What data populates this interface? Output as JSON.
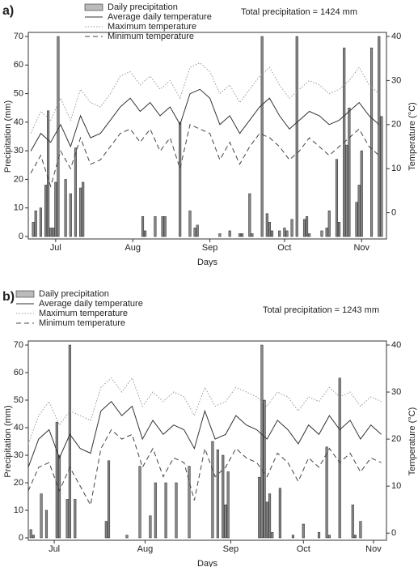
{
  "chart_data": [
    {
      "type": "combo",
      "panel_label": "a)",
      "annotation": "Total precipitation = 1424 mm",
      "xlabel": "Days",
      "ylabel": "Precipitation (mm)",
      "y2label": "Temperature (°C)",
      "xlim": [
        4,
        148
      ],
      "ylim": [
        0,
        70
      ],
      "y2lim": [
        -5.4,
        40
      ],
      "xticks": [
        {
          "value": 15,
          "label": "Jul"
        },
        {
          "value": 46,
          "label": "Aug"
        },
        {
          "value": 77,
          "label": "Sep"
        },
        {
          "value": 107,
          "label": "Oct"
        },
        {
          "value": 138,
          "label": "Nov"
        }
      ],
      "yticks": [
        0,
        10,
        20,
        30,
        40,
        50,
        60,
        70
      ],
      "y2ticks": [
        0,
        10,
        20,
        30,
        40
      ],
      "series": [
        {
          "name": "Daily precipitation",
          "kind": "bar",
          "color": "#888888",
          "x": [
            6,
            7,
            9,
            11,
            12,
            13,
            14,
            15,
            16,
            19,
            21,
            23,
            25,
            26,
            50,
            51,
            55,
            58,
            59,
            65,
            69,
            71,
            72,
            81,
            85,
            89,
            90,
            93,
            94,
            98,
            100,
            101,
            102,
            105,
            107,
            108,
            110,
            112,
            115,
            116,
            117,
            122,
            124,
            125,
            128,
            129,
            131,
            132,
            133,
            136,
            137,
            138,
            142,
            145,
            146
          ],
          "values": [
            5,
            9,
            10,
            18,
            44,
            3,
            3,
            19,
            70,
            20,
            15,
            31,
            17,
            19,
            7,
            2,
            7,
            7,
            7,
            40,
            9,
            3,
            4,
            1,
            2,
            1,
            1,
            15,
            1,
            70,
            8,
            5,
            2,
            2,
            3,
            2,
            6,
            70,
            6,
            7,
            1,
            2,
            3,
            9,
            27,
            5,
            66,
            32,
            45,
            12,
            18,
            30,
            66,
            70,
            42
          ]
        },
        {
          "name": "Average daily temperature",
          "kind": "line",
          "dash": "solid",
          "color": "#333333",
          "axis": "y2",
          "x": [
            5,
            9,
            13,
            17,
            21,
            25,
            29,
            33,
            37,
            41,
            45,
            49,
            53,
            57,
            61,
            65,
            69,
            73,
            77,
            81,
            85,
            89,
            93,
            97,
            101,
            105,
            109,
            113,
            117,
            121,
            125,
            129,
            133,
            137,
            141,
            145
          ],
          "values": [
            14,
            18,
            16,
            20,
            15,
            22,
            17,
            18,
            21,
            24,
            26,
            23,
            25,
            22,
            24,
            20,
            27,
            28,
            26,
            20,
            22,
            18,
            21,
            24,
            26,
            22,
            19,
            21,
            23,
            22,
            20,
            21,
            23,
            25,
            22,
            20
          ]
        },
        {
          "name": "Maximum temperature",
          "kind": "line",
          "dash": "dotted",
          "color": "#999999",
          "axis": "y2",
          "x": [
            5,
            9,
            13,
            17,
            21,
            25,
            29,
            33,
            37,
            41,
            45,
            49,
            53,
            57,
            61,
            65,
            69,
            73,
            77,
            81,
            85,
            89,
            93,
            97,
            101,
            105,
            109,
            113,
            117,
            121,
            125,
            129,
            133,
            137,
            141,
            145
          ],
          "values": [
            18,
            23,
            21,
            26,
            21,
            28,
            25,
            24,
            27,
            31,
            32,
            29,
            31,
            28,
            30,
            26,
            33,
            34,
            32,
            27,
            29,
            25,
            28,
            31,
            33,
            29,
            26,
            28,
            30,
            29,
            27,
            28,
            30,
            33,
            29,
            27
          ]
        },
        {
          "name": "Minimum temperature",
          "kind": "line",
          "dash": "dashed",
          "color": "#444444",
          "axis": "y2",
          "x": [
            5,
            9,
            13,
            17,
            21,
            25,
            29,
            33,
            37,
            41,
            45,
            49,
            53,
            57,
            61,
            65,
            69,
            73,
            77,
            81,
            85,
            89,
            93,
            97,
            101,
            105,
            109,
            113,
            117,
            121,
            125,
            129,
            133,
            137,
            141,
            145
          ],
          "values": [
            9,
            13,
            6,
            14,
            10,
            17,
            11,
            12,
            15,
            18,
            19,
            16,
            19,
            14,
            17,
            10,
            20,
            19,
            18,
            12,
            16,
            11,
            15,
            18,
            17,
            15,
            12,
            14,
            17,
            15,
            13,
            15,
            17,
            19,
            15,
            13
          ]
        }
      ]
    },
    {
      "type": "combo",
      "panel_label": "b)",
      "annotation": "Total precipitation = 1243 mm",
      "xlabel": "Days",
      "ylabel": "Precipitation (mm)",
      "y2label": "Temperature (°C)",
      "xlim": [
        5,
        143
      ],
      "ylim": [
        0,
        70
      ],
      "y2lim": [
        -1,
        40
      ],
      "xticks": [
        {
          "value": 15,
          "label": "Jul"
        },
        {
          "value": 50,
          "label": "Aug"
        },
        {
          "value": 83,
          "label": "Sep"
        },
        {
          "value": 111,
          "label": "Oct"
        },
        {
          "value": 138,
          "label": "Nov"
        }
      ],
      "yticks": [
        0,
        10,
        20,
        30,
        40,
        50,
        60,
        70
      ],
      "y2ticks": [
        0,
        10,
        20,
        30,
        40
      ],
      "series": [
        {
          "name": "Daily precipitation",
          "kind": "bar",
          "color": "#888888",
          "x": [
            6,
            7,
            10,
            12,
            16,
            17,
            20,
            21,
            23,
            35,
            36,
            43,
            48,
            52,
            54,
            58,
            62,
            67,
            76,
            78,
            80,
            81,
            82,
            94,
            95,
            96,
            97,
            98,
            99,
            102,
            107,
            111,
            117,
            120,
            121,
            125,
            130,
            131,
            133
          ],
          "values": [
            3,
            1,
            16,
            10,
            42,
            30,
            14,
            70,
            14,
            6,
            28,
            1,
            26,
            8,
            20,
            20,
            20,
            26,
            35,
            32,
            30,
            12,
            24,
            22,
            70,
            50,
            13,
            16,
            2,
            18,
            1,
            5,
            2,
            33,
            1,
            58,
            12,
            1,
            6
          ]
        },
        {
          "name": "Average daily temperature",
          "kind": "line",
          "dash": "solid",
          "color": "#333333",
          "axis": "y2",
          "x": [
            5,
            9,
            13,
            17,
            21,
            25,
            29,
            33,
            37,
            41,
            45,
            49,
            53,
            57,
            61,
            65,
            69,
            73,
            77,
            81,
            85,
            89,
            93,
            97,
            101,
            105,
            109,
            113,
            117,
            121,
            125,
            129,
            133,
            137,
            141
          ],
          "values": [
            14,
            20,
            22,
            16,
            21,
            18,
            17,
            26,
            28,
            25,
            27,
            20,
            24,
            21,
            23,
            22,
            18,
            26,
            20,
            21,
            25,
            23,
            22,
            20,
            24,
            22,
            19,
            23,
            21,
            25,
            22,
            24,
            20,
            23,
            21
          ]
        },
        {
          "name": "Maximum temperature",
          "kind": "line",
          "dash": "dotted",
          "color": "#999999",
          "axis": "y2",
          "x": [
            5,
            9,
            13,
            17,
            21,
            25,
            29,
            33,
            37,
            41,
            45,
            49,
            53,
            57,
            61,
            65,
            69,
            73,
            77,
            81,
            85,
            89,
            93,
            97,
            101,
            105,
            109,
            113,
            117,
            121,
            125,
            129,
            133,
            137,
            141
          ],
          "values": [
            19,
            25,
            28,
            23,
            26,
            25,
            24,
            31,
            33,
            30,
            33,
            27,
            30,
            28,
            30,
            29,
            25,
            31,
            27,
            28,
            31,
            30,
            29,
            27,
            30,
            29,
            26,
            29,
            28,
            31,
            29,
            30,
            27,
            29,
            28
          ]
        },
        {
          "name": "Minimum temperature",
          "kind": "line",
          "dash": "dashed",
          "color": "#444444",
          "axis": "y2",
          "x": [
            5,
            9,
            13,
            17,
            21,
            25,
            29,
            33,
            37,
            41,
            45,
            49,
            53,
            57,
            61,
            65,
            69,
            73,
            77,
            81,
            85,
            89,
            93,
            97,
            101,
            105,
            109,
            113,
            117,
            121,
            125,
            129,
            133,
            137,
            141
          ],
          "values": [
            9,
            14,
            15,
            9,
            14,
            10,
            6,
            18,
            22,
            20,
            21,
            14,
            18,
            12,
            16,
            15,
            7,
            18,
            12,
            14,
            18,
            16,
            15,
            12,
            17,
            15,
            11,
            16,
            14,
            18,
            15,
            17,
            13,
            16,
            15
          ]
        }
      ]
    }
  ]
}
